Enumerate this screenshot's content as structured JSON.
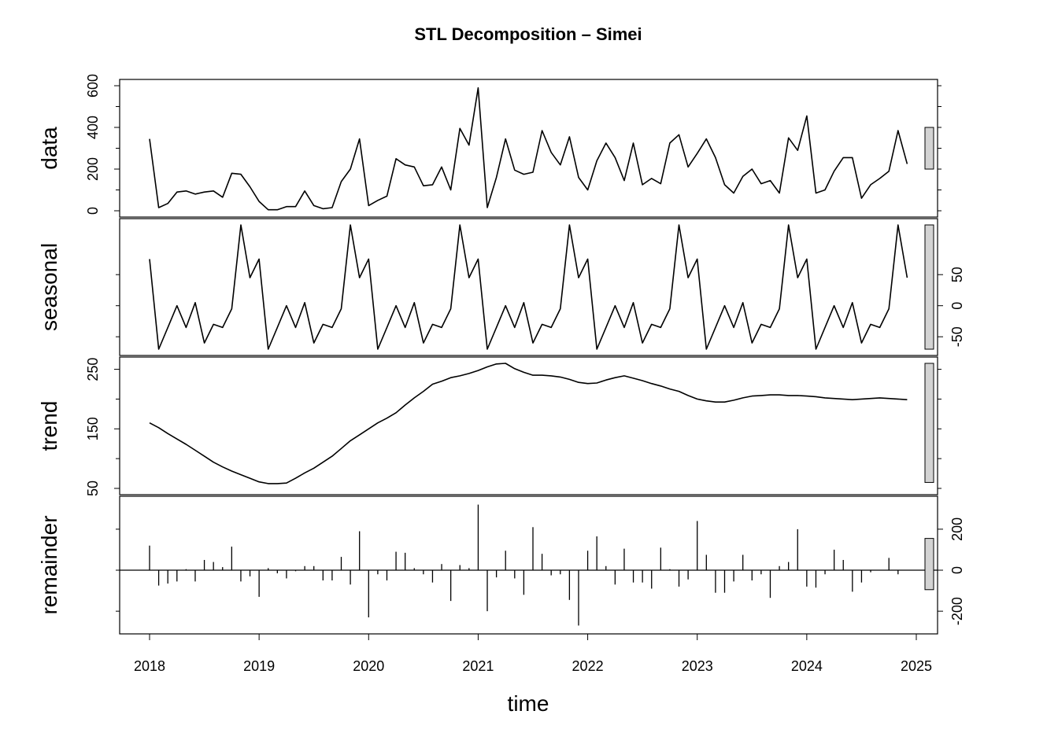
{
  "title": "STL Decomposition – Simei",
  "xlabel": "time",
  "colors": {
    "line": "#000000",
    "bar_fill": "#d3d3d3",
    "background": "#ffffff"
  },
  "chart_data": {
    "type": "line",
    "title": "STL Decomposition – Simei",
    "xlabel": "time",
    "x_ticks": [
      "2018",
      "2019",
      "2020",
      "2021",
      "2022",
      "2023",
      "2024",
      "2025"
    ],
    "xlim": [
      2018,
      2025
    ],
    "frequency": 12,
    "start": 2018,
    "panels": [
      {
        "name": "data",
        "ylabel": "data",
        "axis_side": "left",
        "style": "line",
        "ylim": [
          0,
          600
        ],
        "y_ticks": [
          0,
          200,
          400,
          600
        ],
        "minor_ticks": [
          100,
          300,
          500
        ],
        "range_bar": [
          200,
          400
        ],
        "values": [
          345,
          15,
          35,
          90,
          95,
          80,
          90,
          95,
          65,
          180,
          175,
          115,
          45,
          5,
          5,
          20,
          20,
          95,
          25,
          10,
          15,
          140,
          200,
          345,
          25,
          50,
          70,
          250,
          220,
          210,
          120,
          125,
          210,
          100,
          395,
          315,
          590,
          15,
          160,
          345,
          195,
          175,
          185,
          385,
          280,
          220,
          355,
          160,
          100,
          240,
          325,
          255,
          145,
          325,
          125,
          155,
          130,
          325,
          365,
          210,
          275,
          345,
          255,
          125,
          85,
          165,
          200,
          130,
          145,
          85,
          350,
          290,
          455,
          85,
          100,
          190,
          255,
          255,
          60,
          125,
          155,
          190,
          385,
          225
        ]
      },
      {
        "name": "seasonal",
        "ylabel": "seasonal",
        "axis_side": "right",
        "style": "line",
        "ylim": [
          -70,
          130
        ],
        "y_ticks": [
          -50,
          0,
          50
        ],
        "minor_ticks": [],
        "range_bar": [
          -70,
          130
        ],
        "values": [
          75,
          -70,
          -35,
          0,
          -35,
          5,
          -60,
          -30,
          -35,
          -5,
          130,
          45,
          75,
          -70,
          -35,
          0,
          -35,
          5,
          -60,
          -30,
          -35,
          -5,
          130,
          45,
          75,
          -70,
          -35,
          0,
          -35,
          5,
          -60,
          -30,
          -35,
          -5,
          130,
          45,
          75,
          -70,
          -35,
          0,
          -35,
          5,
          -60,
          -30,
          -35,
          -5,
          130,
          45,
          75,
          -70,
          -35,
          0,
          -35,
          5,
          -60,
          -30,
          -35,
          -5,
          130,
          45,
          75,
          -70,
          -35,
          0,
          -35,
          5,
          -60,
          -30,
          -35,
          -5,
          130,
          45,
          75,
          -70,
          -35,
          0,
          -35,
          5,
          -60,
          -30,
          -35,
          -5,
          130,
          45
        ]
      },
      {
        "name": "trend",
        "ylabel": "trend",
        "axis_side": "left",
        "style": "line",
        "ylim": [
          50,
          260
        ],
        "y_ticks": [
          50,
          150,
          250
        ],
        "minor_ticks": [
          100,
          200
        ],
        "range_bar": [
          60,
          260
        ],
        "values": [
          160,
          152,
          142,
          133,
          124,
          114,
          104,
          94,
          86,
          79,
          73,
          67,
          61,
          58,
          58,
          59,
          67,
          76,
          84,
          94,
          104,
          117,
          130,
          140,
          150,
          160,
          168,
          177,
          190,
          202,
          213,
          225,
          230,
          236,
          239,
          243,
          248,
          254,
          259,
          260,
          251,
          245,
          240,
          240,
          239,
          237,
          233,
          228,
          226,
          227,
          232,
          236,
          239,
          235,
          231,
          226,
          222,
          217,
          213,
          206,
          200,
          197,
          195,
          195,
          198,
          202,
          205,
          206,
          207,
          207,
          206,
          206,
          205,
          204,
          202,
          201,
          200,
          199,
          200,
          201,
          202,
          201,
          200,
          199
        ]
      },
      {
        "name": "remainder",
        "ylabel": "remainder",
        "axis_side": "right",
        "style": "bars",
        "ylim": [
          -280,
          330
        ],
        "y_ticks": [
          -200,
          0,
          200
        ],
        "minor_ticks": [],
        "range_bar": [
          -95,
          155
        ],
        "values": [
          120,
          -75,
          -65,
          -55,
          5,
          -55,
          50,
          40,
          15,
          115,
          -55,
          -30,
          -130,
          10,
          -15,
          -40,
          -5,
          20,
          20,
          -50,
          -50,
          65,
          -70,
          190,
          -230,
          -20,
          -50,
          90,
          85,
          10,
          -20,
          -60,
          30,
          -150,
          25,
          10,
          320,
          -200,
          -35,
          95,
          -40,
          -120,
          210,
          80,
          -25,
          -20,
          -145,
          -270,
          95,
          165,
          20,
          -70,
          105,
          -60,
          -60,
          -90,
          110,
          5,
          -80,
          -45,
          240,
          75,
          -110,
          -110,
          -55,
          75,
          -50,
          -20,
          -135,
          20,
          40,
          200,
          -80,
          -85,
          -20,
          100,
          50,
          -105,
          -60,
          -10,
          0,
          60,
          -20,
          0
        ]
      }
    ]
  }
}
